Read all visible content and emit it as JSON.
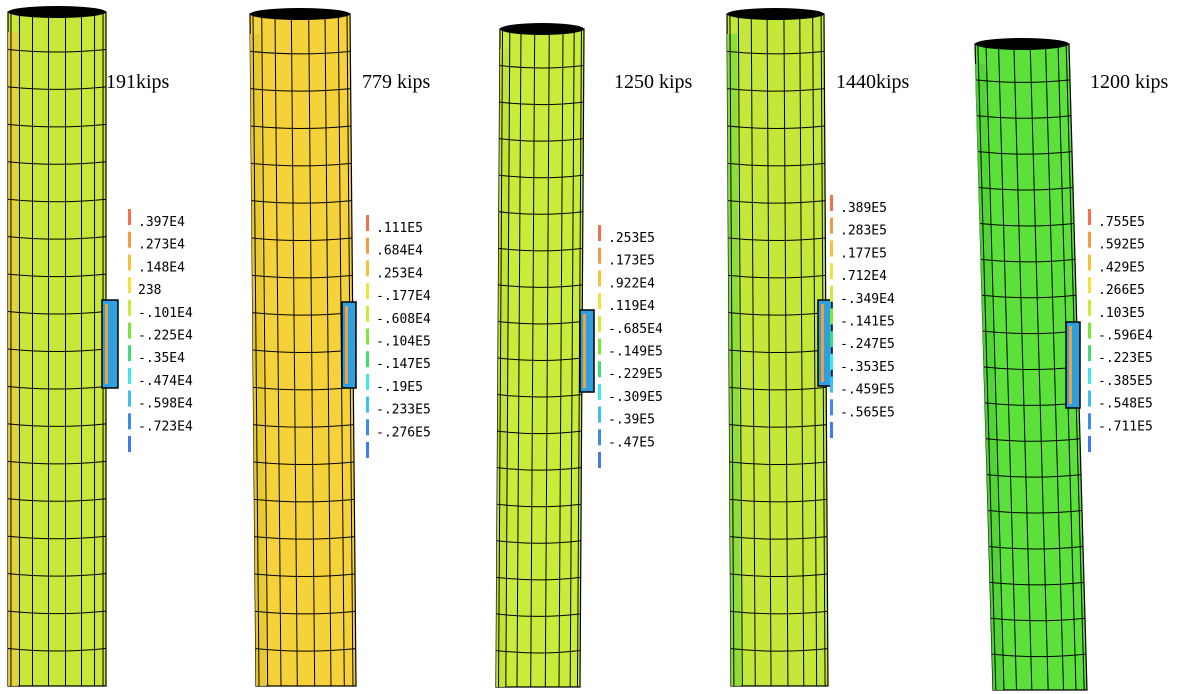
{
  "panels": [
    {
      "load_label": "191kips",
      "body_color": "#c9e63a",
      "stripe_color": "#e8cf3a",
      "legend": {
        "values": [
          ".397E4",
          ".273E4",
          ".148E4",
          "238",
          "-.101E4",
          "-.225E4",
          "-.35E4",
          "-.474E4",
          "-.598E4",
          "-.723E4"
        ]
      }
    },
    {
      "load_label": "779 kips",
      "body_color": "#f5d23a",
      "stripe_color": "#e8c832",
      "legend": {
        "values": [
          ".111E5",
          ".684E4",
          ".253E4",
          "-.177E4",
          "-.608E4",
          "-.104E5",
          "-.147E5",
          "-.19E5",
          "-.233E5",
          "-.276E5"
        ]
      }
    },
    {
      "load_label": "1250 kips",
      "body_color": "#c9ec3a",
      "stripe_color": "#c2e236",
      "legend": {
        "values": [
          ".253E5",
          ".173E5",
          ".922E4",
          ".119E4",
          "-.685E4",
          "-.149E5",
          "-.229E5",
          "-.309E5",
          "-.39E5",
          "-.47E5"
        ]
      }
    },
    {
      "load_label": "1440kips",
      "body_color": "#c3e83a",
      "stripe_color": "#88dd3a",
      "legend": {
        "values": [
          ".389E5",
          ".283E5",
          ".177E5",
          ".712E4",
          "-.349E4",
          "-.141E5",
          "-.247E5",
          "-.353E5",
          "-.459E5",
          "-.565E5"
        ]
      }
    },
    {
      "load_label": "1200 kips",
      "body_color": "#5be13a",
      "stripe_color": "#4fd434",
      "legend": {
        "values": [
          ".755E5",
          ".592E5",
          ".429E5",
          ".266E5",
          ".103E5",
          "-.596E4",
          "-.223E5",
          "-.385E5",
          "-.548E5",
          "-.711E5"
        ]
      }
    }
  ],
  "legend_colors": [
    "#f2704a",
    "#f59a3e",
    "#f7c23a",
    "#f2e23a",
    "#c8ee3a",
    "#7ee83a",
    "#3ce070",
    "#3ce8e8",
    "#3cc0f0",
    "#3c8cf0"
  ]
}
